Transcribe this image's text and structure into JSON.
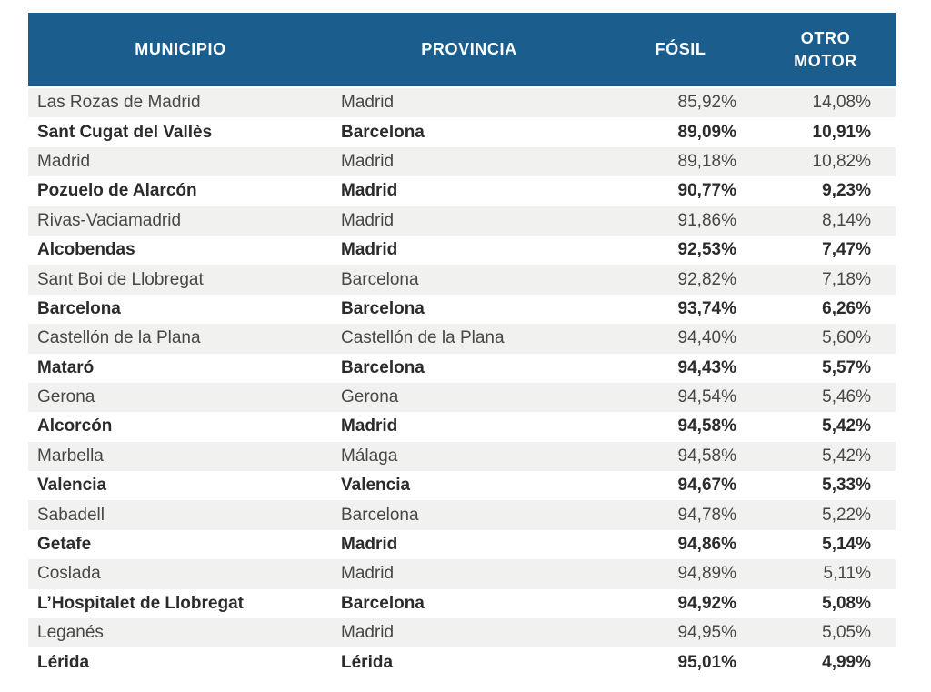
{
  "chart_data": {
    "type": "table",
    "columns": [
      "MUNICIPIO",
      "PROVINCIA",
      "FÓSIL",
      "OTRO MOTOR"
    ],
    "rows": [
      [
        "Las Rozas de Madrid",
        "Madrid",
        "85,92%",
        "14,08%"
      ],
      [
        "Sant Cugat del Vallès",
        "Barcelona",
        "89,09%",
        "10,91%"
      ],
      [
        "Madrid",
        "Madrid",
        "89,18%",
        "10,82%"
      ],
      [
        "Pozuelo de Alarcón",
        "Madrid",
        "90,77%",
        "9,23%"
      ],
      [
        "Rivas-Vaciamadrid",
        "Madrid",
        "91,86%",
        "8,14%"
      ],
      [
        "Alcobendas",
        "Madrid",
        "92,53%",
        "7,47%"
      ],
      [
        "Sant Boi de Llobregat",
        "Barcelona",
        "92,82%",
        "7,18%"
      ],
      [
        "Barcelona",
        "Barcelona",
        "93,74%",
        "6,26%"
      ],
      [
        "Castellón de la Plana",
        "Castellón de la Plana",
        "94,40%",
        "5,60%"
      ],
      [
        "Mataró",
        "Barcelona",
        "94,43%",
        "5,57%"
      ],
      [
        "Gerona",
        "Gerona",
        "94,54%",
        "5,46%"
      ],
      [
        "Alcorcón",
        "Madrid",
        "94,58%",
        "5,42%"
      ],
      [
        "Marbella",
        "Málaga",
        "94,58%",
        "5,42%"
      ],
      [
        "Valencia",
        "Valencia",
        "94,67%",
        "5,33%"
      ],
      [
        "Sabadell",
        "Barcelona",
        "94,78%",
        "5,22%"
      ],
      [
        "Getafe",
        "Madrid",
        "94,86%",
        "5,14%"
      ],
      [
        "Coslada",
        "Madrid",
        "94,89%",
        "5,11%"
      ],
      [
        "L’Hospitalet de Llobregat",
        "Barcelona",
        "94,92%",
        "5,08%"
      ],
      [
        "Leganés",
        "Madrid",
        "94,95%",
        "5,05%"
      ],
      [
        "Lérida",
        "Lérida",
        "95,01%",
        "4,99%"
      ]
    ]
  },
  "colors": {
    "header_bg": "#1b5d8c",
    "header_text": "#ffffff",
    "row_stripe": "#f1f1ef",
    "row_white": "#ffffff",
    "text_normal": "#474747",
    "text_bold": "#2b2b2b",
    "page_bg": "#ffffff"
  }
}
